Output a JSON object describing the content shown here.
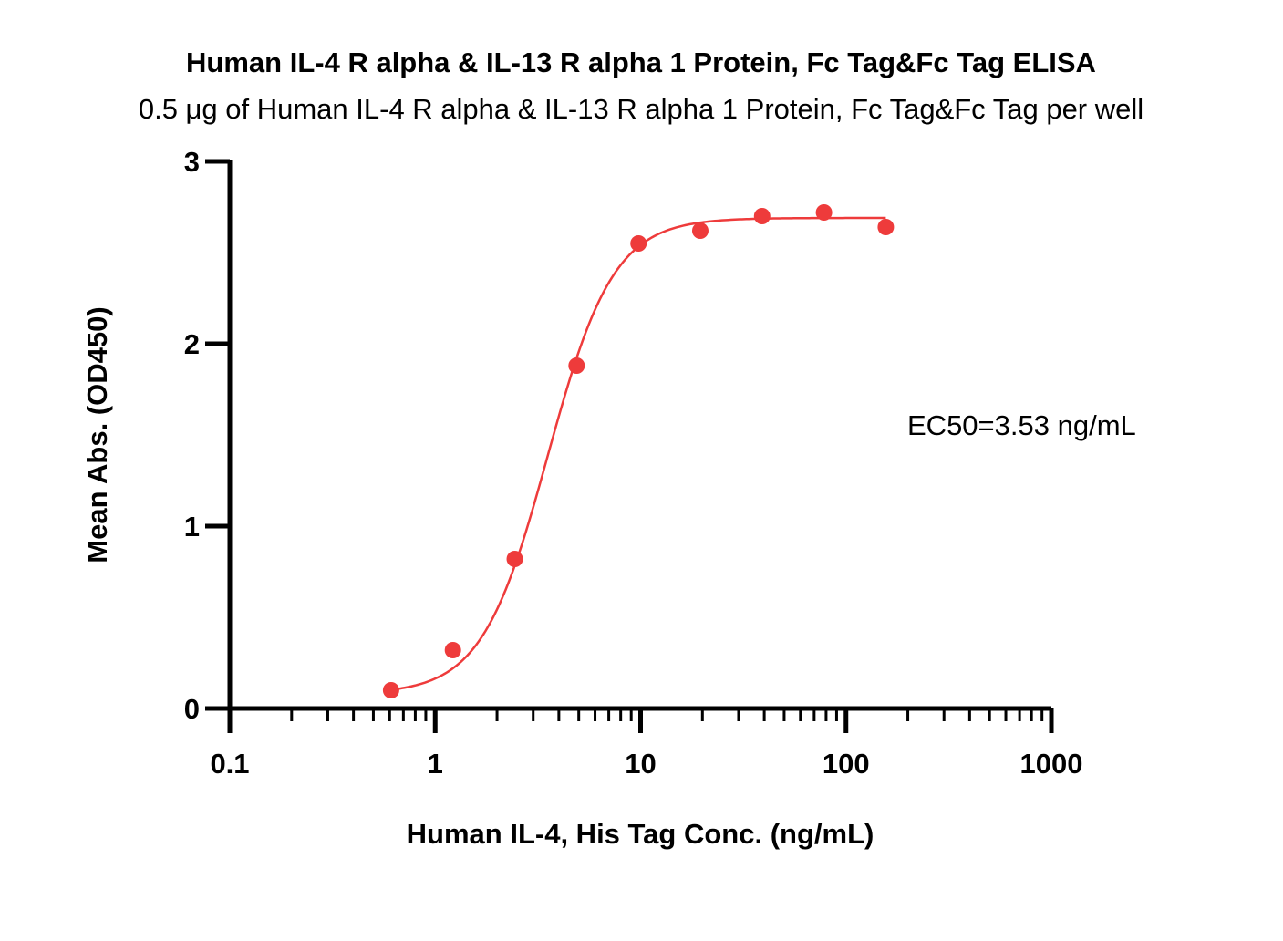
{
  "chart_data": {
    "type": "scatter",
    "title": "Human IL-4 R alpha & IL-13 R alpha 1 Protein, Fc Tag&Fc Tag ELISA",
    "subtitle": "0.5 μg of Human IL-4 R alpha & IL-13 R alpha 1 Protein, Fc Tag&Fc Tag per well",
    "xlabel": "Human  IL-4, His Tag Conc. (ng/mL)",
    "ylabel": "Mean Abs. (OD450)",
    "xscale": "log",
    "xlim": [
      0.1,
      1000
    ],
    "ylim": [
      0,
      3
    ],
    "xticks": [
      0.1,
      1,
      10,
      100,
      1000
    ],
    "xtick_labels": [
      "0.1",
      "1",
      "10",
      "100",
      "1000"
    ],
    "yticks": [
      0,
      1,
      2,
      3
    ],
    "ytick_labels": [
      "0",
      "1",
      "2",
      "3"
    ],
    "grid": false,
    "series": [
      {
        "x": [
          0.61,
          1.22,
          2.44,
          4.88,
          9.77,
          19.53,
          39.06,
          78.13,
          156.25
        ],
        "y": [
          0.1,
          0.32,
          0.82,
          1.88,
          2.55,
          2.62,
          2.7,
          2.72,
          2.64
        ],
        "color": "#ee3b3b"
      }
    ],
    "fit": {
      "model": "4PL",
      "bottom": 0.08,
      "top": 2.69,
      "ec50": 3.53,
      "hill": 2.7,
      "x_range": [
        0.61,
        156.25
      ],
      "color": "#ee3b3b"
    },
    "annotation": "EC50=3.53 ng/mL"
  }
}
